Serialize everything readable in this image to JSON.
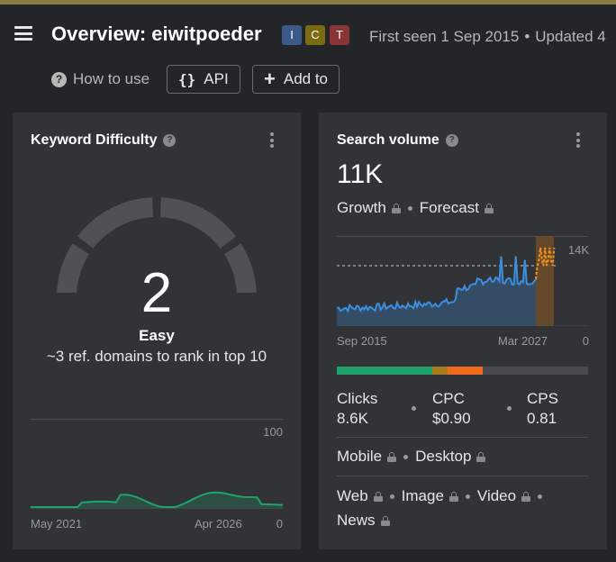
{
  "header": {
    "title": "Overview: eiwitpoeder",
    "badges": [
      {
        "letter": "I",
        "color": "#3b5a8a"
      },
      {
        "letter": "C",
        "color": "#7a6a10"
      },
      {
        "letter": "T",
        "color": "#8a3535"
      }
    ],
    "first_seen": "First seen 1 Sep 2015",
    "updated": "Updated 4",
    "how_to_use": "How to use",
    "api_label": "API",
    "add_to_label": "Add to"
  },
  "keyword_difficulty": {
    "title": "Keyword Difficulty",
    "score": "2",
    "score_fraction": 0.02,
    "label": "Easy",
    "description": "~3 ref. domains to rank in top 10",
    "axis_max": "100",
    "axis_min": "0",
    "x_start": "May 2021",
    "x_end": "Apr 2026",
    "color": "#1fa36b"
  },
  "search_volume": {
    "title": "Search volume",
    "volume": "11K",
    "growth_label": "Growth",
    "forecast_label": "Forecast",
    "axis_max": "14K",
    "axis_min": "0",
    "x_start": "Sep 2015",
    "x_end": "Mar 2027",
    "line_color": "#3a8fe0",
    "forecast_color": "#f5921e",
    "intent_bar": [
      {
        "share": 0.38,
        "color": "#1fa36b"
      },
      {
        "share": 0.06,
        "color": "#a67c1e"
      },
      {
        "share": 0.14,
        "color": "#f26a1b"
      },
      {
        "share": 0.42,
        "color": "#4a4b4e"
      }
    ],
    "clicks_label": "Clicks",
    "clicks_value": "8.6K",
    "cpc_label": "CPC",
    "cpc_value": "$0.90",
    "cps_label": "CPS",
    "cps_value": "0.81",
    "mobile_label": "Mobile",
    "desktop_label": "Desktop",
    "web_label": "Web",
    "image_label": "Image",
    "video_label": "Video",
    "news_label": "News"
  }
}
